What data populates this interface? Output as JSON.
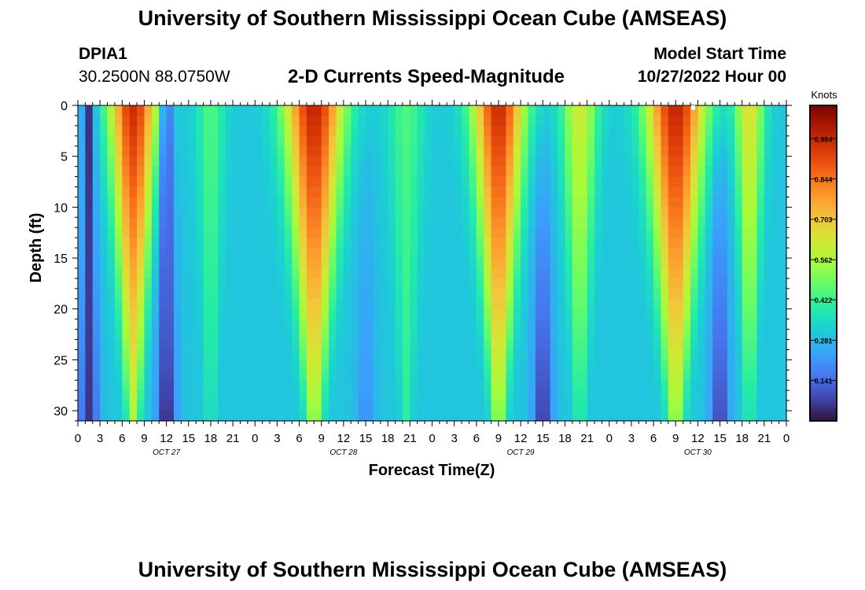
{
  "header": {
    "title_top": "University of Southern Mississippi Ocean Cube (AMSEAS)",
    "title_bottom": "University of Southern Mississippi Ocean Cube (AMSEAS)",
    "station_id": "DPIA1",
    "station_coords": "30.2500N  88.0750W",
    "plot_title": "2-D Currents Speed-Magnitude",
    "model_start_label": "Model Start Time",
    "model_start_value": "10/27/2022 Hour 00"
  },
  "chart_data": {
    "type": "heatmap",
    "title": "2-D Currents Speed-Magnitude",
    "xlabel": "Forecast Time(Z)",
    "ylabel": "Depth (ft)",
    "colorbar_label": "Knots",
    "x_range_hours": [
      0,
      96
    ],
    "y_range_ft": [
      0,
      31
    ],
    "x_ticks": [
      "0",
      "3",
      "6",
      "9",
      "12",
      "15",
      "18",
      "21",
      "0",
      "3",
      "6",
      "9",
      "12",
      "15",
      "18",
      "21",
      "0",
      "3",
      "6",
      "9",
      "12",
      "15",
      "18",
      "21",
      "0",
      "3",
      "6",
      "9",
      "12",
      "15",
      "18",
      "21",
      "0"
    ],
    "y_ticks": [
      0,
      5,
      10,
      15,
      20,
      25,
      30
    ],
    "day_labels": [
      {
        "hour": 12,
        "label": "OCT 27"
      },
      {
        "hour": 36,
        "label": "OCT 28"
      },
      {
        "hour": 60,
        "label": "OCT 29"
      },
      {
        "hour": 84,
        "label": "OCT 30"
      }
    ],
    "colorbar_ticks": [
      "0.984",
      "0.844",
      "0.703",
      "0.562",
      "0.422",
      "0.281",
      "0.141"
    ],
    "colorbar_range": [
      0,
      1.1
    ],
    "grid": false,
    "speed_peaks_hours": [
      {
        "hour": 1.5,
        "surface_knots": 0.03,
        "half_width_hours": 0.8
      },
      {
        "hour": 7.5,
        "surface_knots": 0.98,
        "half_width_hours": 3.2
      },
      {
        "hour": 12,
        "surface_knots": 0.05,
        "half_width_hours": 0.8
      },
      {
        "hour": 18,
        "surface_knots": 0.45,
        "half_width_hours": 2
      },
      {
        "hour": 32,
        "surface_knots": 1.0,
        "half_width_hours": 4
      },
      {
        "hour": 44.5,
        "surface_knots": 0.45,
        "half_width_hours": 2.5
      },
      {
        "hour": 57,
        "surface_knots": 0.98,
        "half_width_hours": 3.5
      },
      {
        "hour": 68,
        "surface_knots": 0.62,
        "half_width_hours": 2.5
      },
      {
        "hour": 81,
        "surface_knots": 1.0,
        "half_width_hours": 4
      },
      {
        "hour": 91,
        "surface_knots": 0.66,
        "half_width_hours": 2
      }
    ],
    "speed_troughs_hours": [
      {
        "hour": 1.5,
        "bottom_knots": 0.05
      },
      {
        "hour": 12,
        "bottom_knots": 0.02
      },
      {
        "hour": 39,
        "bottom_knots": 0.2
      },
      {
        "hour": 63,
        "bottom_knots": 0.05
      },
      {
        "hour": 87,
        "bottom_knots": 0.07
      }
    ]
  }
}
